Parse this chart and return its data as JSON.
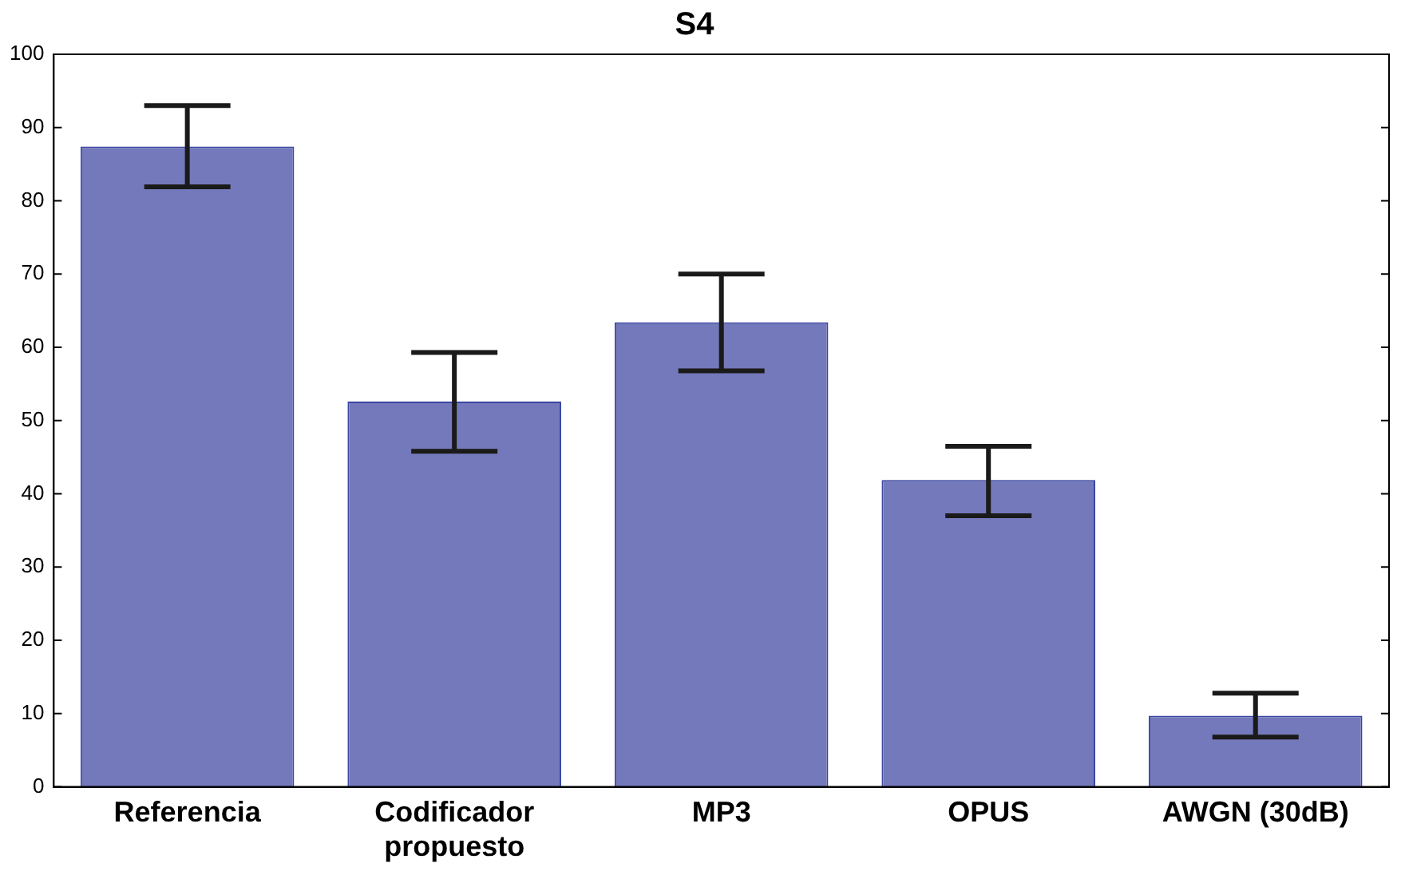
{
  "chart_data": {
    "type": "bar",
    "title": "S4",
    "categories": [
      "Referencia",
      "Codificador propuesto",
      "MP3",
      "OPUS",
      "AWGN (30dB)"
    ],
    "values": [
      87.4,
      52.6,
      63.4,
      41.9,
      9.7
    ],
    "errors": [
      [
        81.9,
        93
      ],
      [
        45.8,
        59.3
      ],
      [
        56.8,
        70
      ],
      [
        37,
        46.5
      ],
      [
        6.8,
        12.8
      ]
    ],
    "color": "#7479bb",
    "ylim": [
      0,
      100
    ],
    "yticks": [
      0,
      10,
      20,
      30,
      40,
      50,
      60,
      70,
      80,
      90,
      100
    ],
    "grid": false,
    "legend": false
  }
}
